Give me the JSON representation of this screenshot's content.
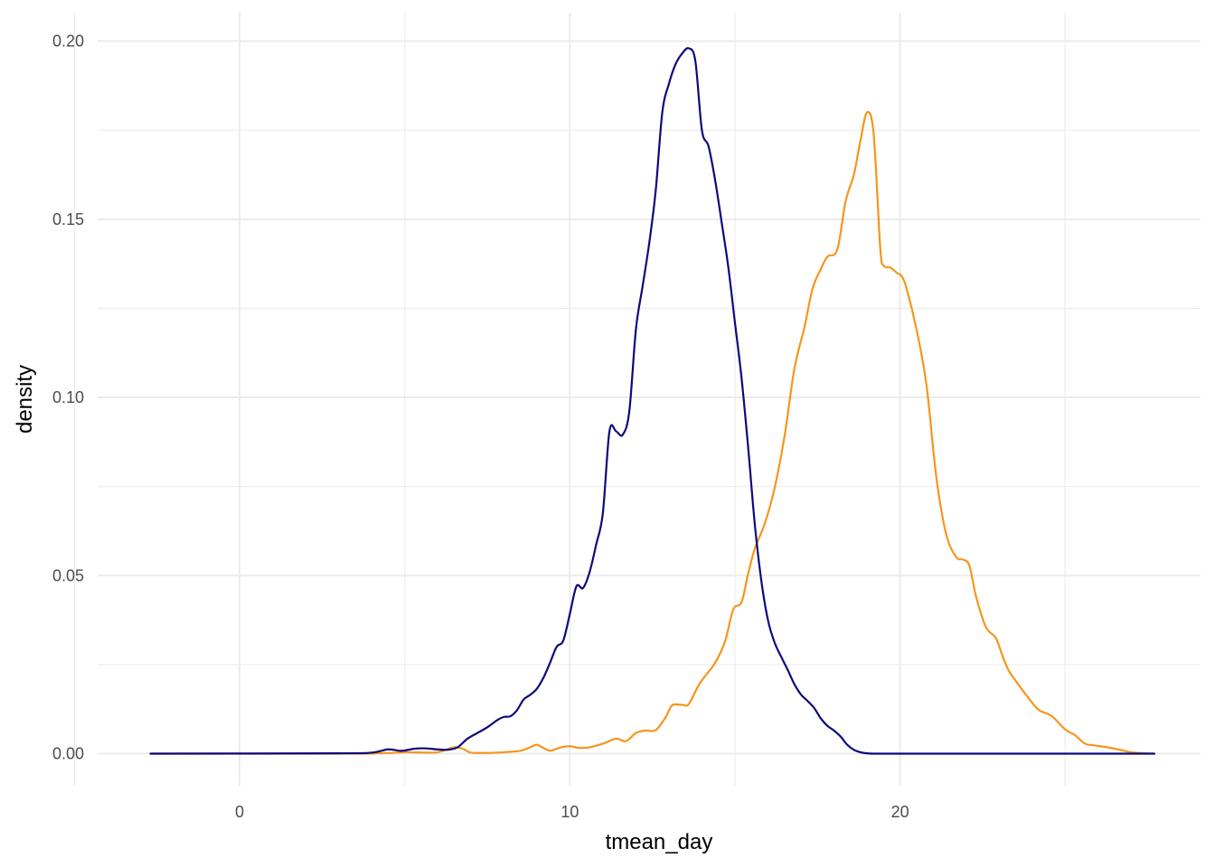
{
  "chart_data": {
    "type": "line",
    "subtype": "density",
    "title": "",
    "xlabel": "tmean_day",
    "ylabel": "density",
    "xlim": [
      -4.3,
      29.1
    ],
    "ylim": [
      -0.009,
      0.208
    ],
    "x_ticks": [
      {
        "value": 0,
        "label": "0"
      },
      {
        "value": 10,
        "label": "10"
      },
      {
        "value": 20,
        "label": "20"
      }
    ],
    "x_minor_ticks": [
      -5,
      5,
      15,
      25
    ],
    "y_ticks": [
      {
        "value": 0,
        "label": "0.00"
      },
      {
        "value": 0.05,
        "label": "0.05"
      },
      {
        "value": 0.1,
        "label": "0.10"
      },
      {
        "value": 0.15,
        "label": "0.15"
      },
      {
        "value": 0.2,
        "label": "0.20"
      }
    ],
    "y_minor_ticks": [
      0.025,
      0.075,
      0.125,
      0.175
    ],
    "grid": true,
    "legend": "none",
    "series": [
      {
        "color": "#F7951B",
        "x": [
          -2.7,
          3.5,
          4.0,
          4.6,
          5.0,
          5.6,
          6.0,
          6.5,
          6.8,
          7.0,
          7.5,
          8.0,
          8.5,
          8.8,
          9.0,
          9.2,
          9.4,
          9.6,
          9.8,
          10.0,
          10.3,
          10.6,
          11.0,
          11.4,
          11.7,
          12.0,
          12.3,
          12.6,
          12.9,
          13.1,
          13.4,
          13.6,
          13.9,
          14.1,
          14.4,
          14.7,
          14.95,
          15.2,
          15.4,
          15.6,
          15.9,
          16.2,
          16.5,
          16.8,
          17.1,
          17.35,
          17.6,
          17.8,
          18.1,
          18.35,
          18.6,
          18.8,
          19.0,
          19.2,
          19.4,
          19.5,
          19.7,
          19.9,
          20.05,
          20.2,
          20.5,
          20.8,
          21.1,
          21.4,
          21.7,
          21.9,
          22.1,
          22.3,
          22.6,
          22.9,
          23.1,
          23.3,
          23.6,
          23.9,
          24.2,
          24.6,
          25.0,
          25.3,
          25.6,
          25.9,
          26.2,
          26.6,
          27.0,
          27.4,
          27.7
        ],
        "y": [
          0.0,
          0.0,
          0.0001,
          0.0002,
          0.0004,
          0.0003,
          0.0004,
          0.0018,
          0.0012,
          0.0003,
          0.0002,
          0.0004,
          0.0008,
          0.0018,
          0.0025,
          0.0016,
          0.0008,
          0.0014,
          0.0019,
          0.0021,
          0.0016,
          0.0018,
          0.0028,
          0.0042,
          0.0035,
          0.0058,
          0.0065,
          0.0066,
          0.0102,
          0.0136,
          0.0137,
          0.0139,
          0.0192,
          0.0218,
          0.0255,
          0.0315,
          0.0405,
          0.0425,
          0.0505,
          0.0575,
          0.0645,
          0.0745,
          0.089,
          0.108,
          0.1195,
          0.1305,
          0.136,
          0.1395,
          0.1415,
          0.155,
          0.1625,
          0.172,
          0.18,
          0.174,
          0.142,
          0.137,
          0.1365,
          0.135,
          0.134,
          0.1305,
          0.119,
          0.1035,
          0.0775,
          0.0615,
          0.0552,
          0.0545,
          0.0528,
          0.0442,
          0.0355,
          0.0325,
          0.0275,
          0.0232,
          0.0192,
          0.0155,
          0.0123,
          0.0105,
          0.0068,
          0.0052,
          0.0028,
          0.0023,
          0.0019,
          0.0012,
          0.0004,
          0.0001,
          0.0
        ]
      },
      {
        "color": "#0B0A7C",
        "x": [
          -2.7,
          3.0,
          4.0,
          4.5,
          4.9,
          5.3,
          5.6,
          6.0,
          6.3,
          6.6,
          6.9,
          7.2,
          7.5,
          7.8,
          8.0,
          8.2,
          8.4,
          8.6,
          8.8,
          9.0,
          9.2,
          9.4,
          9.6,
          9.8,
          10.0,
          10.2,
          10.4,
          10.6,
          10.8,
          11.0,
          11.2,
          11.4,
          11.6,
          11.8,
          12.0,
          12.2,
          12.4,
          12.6,
          12.8,
          13.0,
          13.2,
          13.4,
          13.6,
          13.8,
          14.0,
          14.2,
          14.4,
          14.6,
          14.8,
          15.0,
          15.2,
          15.4,
          15.6,
          15.8,
          16.0,
          16.2,
          16.4,
          16.6,
          16.8,
          17.0,
          17.2,
          17.4,
          17.6,
          17.8,
          18.0,
          18.2,
          18.4,
          18.6,
          18.8,
          19.0,
          19.2,
          19.4,
          19.6,
          19.8,
          20.0,
          20.2,
          20.4,
          20.6,
          20.8,
          21.0,
          21.2,
          21.5,
          22.0,
          24.0,
          27.7
        ],
        "y": [
          0.0,
          0.0001,
          0.0003,
          0.0012,
          0.0008,
          0.0014,
          0.0015,
          0.0012,
          0.0011,
          0.0018,
          0.0042,
          0.0058,
          0.0074,
          0.0094,
          0.0103,
          0.0105,
          0.0122,
          0.0152,
          0.0165,
          0.0182,
          0.0213,
          0.0255,
          0.03,
          0.0317,
          0.0392,
          0.047,
          0.0465,
          0.051,
          0.0588,
          0.0675,
          0.0905,
          0.0905,
          0.0895,
          0.096,
          0.119,
          0.131,
          0.143,
          0.158,
          0.18,
          0.188,
          0.1935,
          0.1965,
          0.198,
          0.1945,
          0.175,
          0.1705,
          0.161,
          0.149,
          0.1365,
          0.121,
          0.1055,
          0.086,
          0.0645,
          0.0485,
          0.0375,
          0.0312,
          0.0272,
          0.0235,
          0.0195,
          0.0166,
          0.0148,
          0.0128,
          0.0099,
          0.0078,
          0.0065,
          0.0048,
          0.0025,
          0.0011,
          0.0004,
          0.0001,
          0.0,
          0.0,
          0.0,
          0.0,
          0.0,
          0.0,
          0.0,
          0.0,
          0.0,
          0.0,
          0.0,
          0.0,
          0.0,
          0.0,
          0.0
        ]
      }
    ]
  }
}
